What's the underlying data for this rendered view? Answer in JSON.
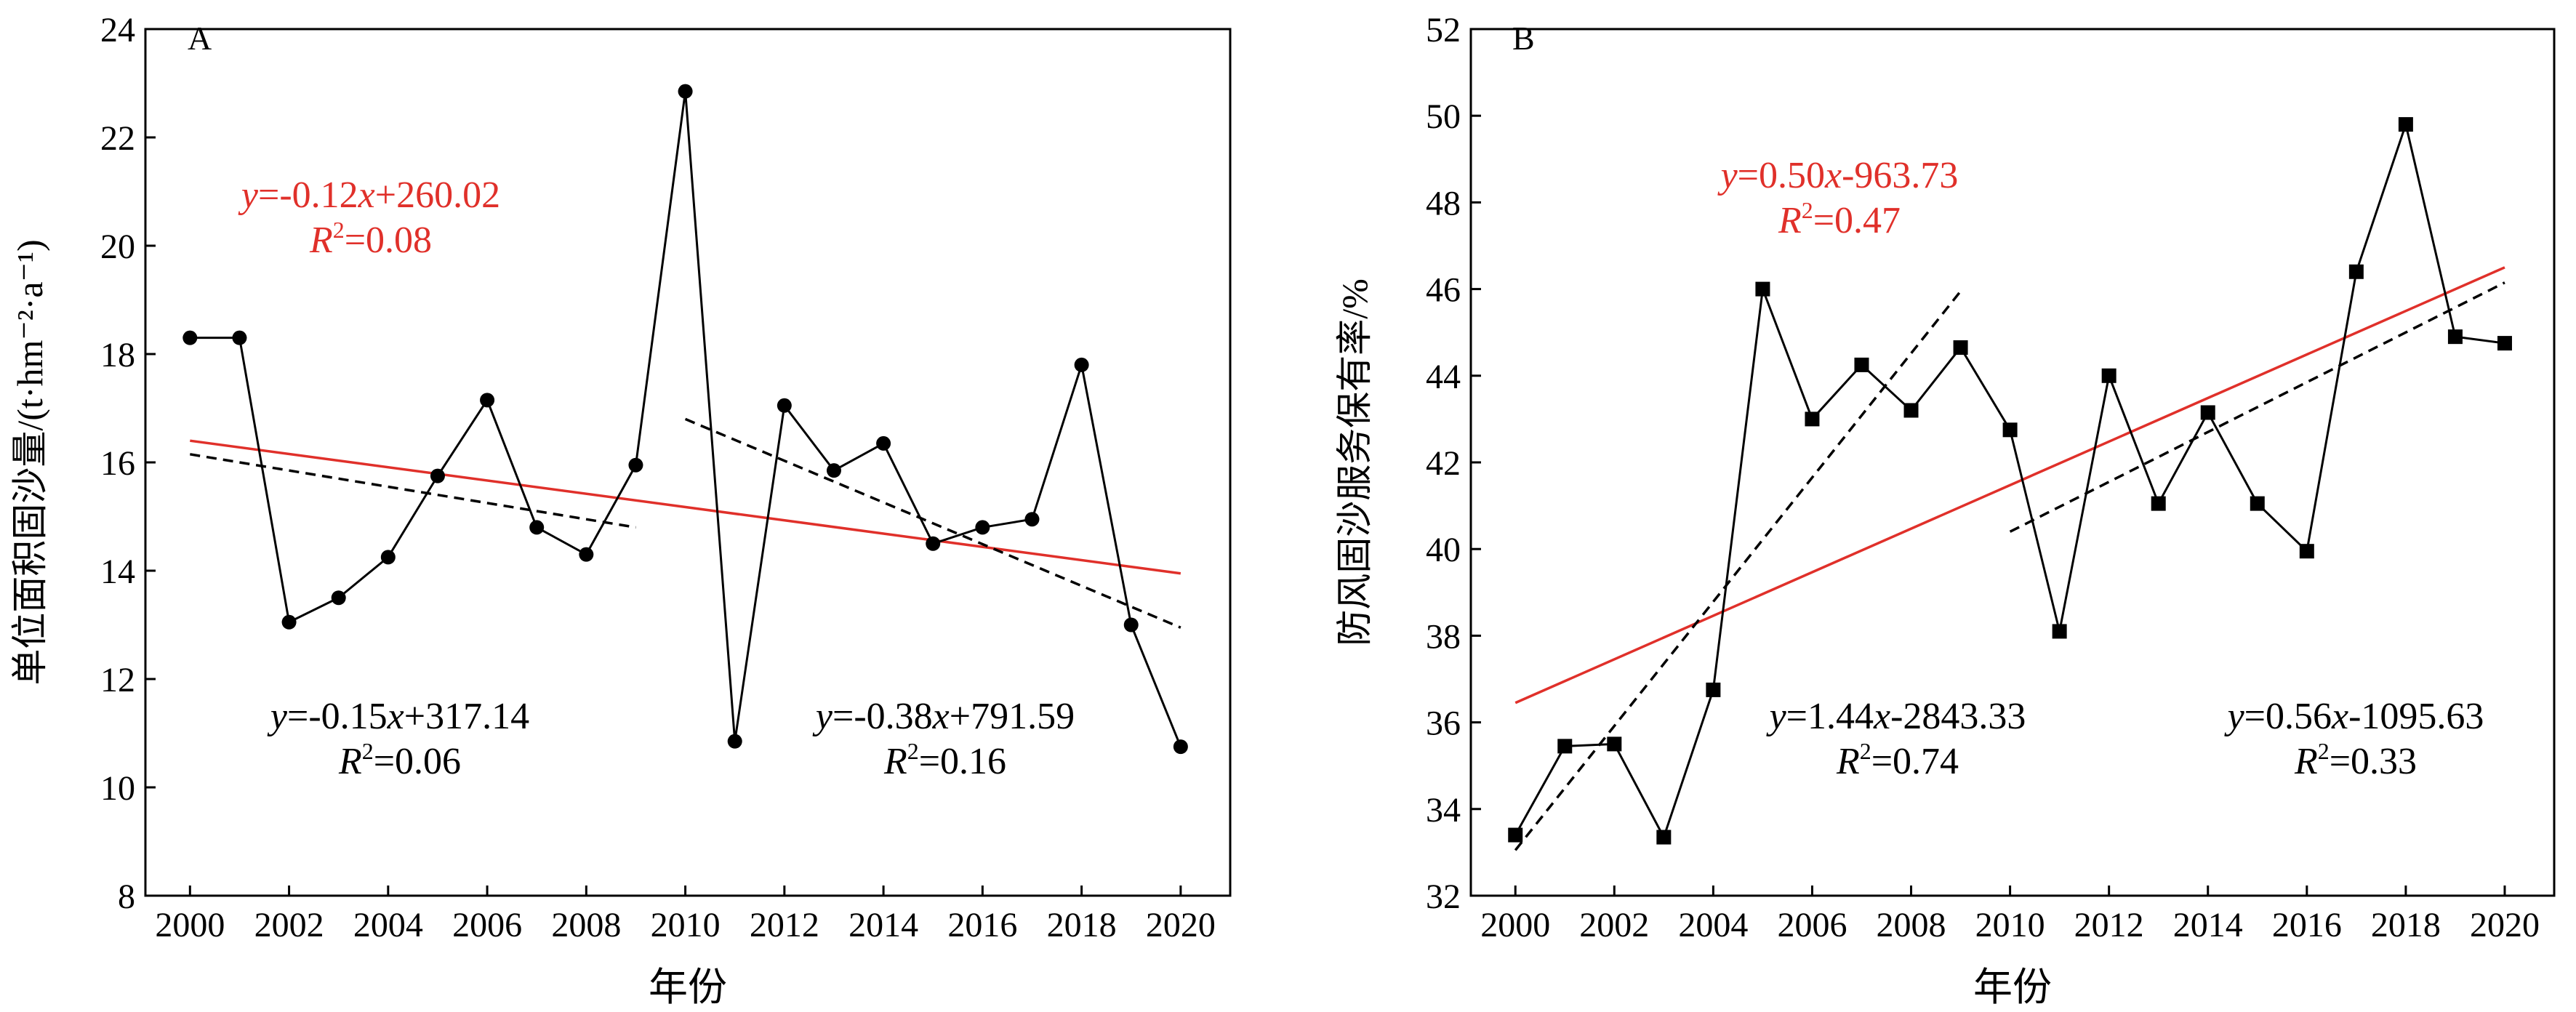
{
  "chart_data": [
    {
      "panel_label": "A",
      "type": "line",
      "xlabel": "年份",
      "ylabel": "单位面积固沙量/(t·hm⁻²·a⁻¹)",
      "xlim": [
        1999.1,
        2021.0
      ],
      "ylim": [
        8,
        24
      ],
      "xticks": [
        2000,
        2002,
        2004,
        2006,
        2008,
        2010,
        2012,
        2014,
        2016,
        2018,
        2020
      ],
      "yticks": [
        8,
        10,
        12,
        14,
        16,
        18,
        20,
        22,
        24
      ],
      "x": [
        2000,
        2001,
        2002,
        2003,
        2004,
        2005,
        2006,
        2007,
        2008,
        2009,
        2010,
        2011,
        2012,
        2013,
        2014,
        2015,
        2016,
        2017,
        2018,
        2019,
        2020
      ],
      "values": [
        18.3,
        18.3,
        13.05,
        13.5,
        14.25,
        15.75,
        17.15,
        14.8,
        14.3,
        15.95,
        22.85,
        10.85,
        17.05,
        15.85,
        16.35,
        14.5,
        14.8,
        14.95,
        17.8,
        13.0,
        10.75
      ],
      "marker": "circle",
      "trend_lines": [
        {
          "style": "solid",
          "color": "#e0302a",
          "x": [
            2000,
            2020
          ],
          "y": [
            16.4,
            13.95
          ]
        },
        {
          "style": "dashed",
          "color": "#000000",
          "x": [
            2000,
            2009
          ],
          "y": [
            16.15,
            14.8
          ]
        },
        {
          "style": "dashed",
          "color": "#000000",
          "x": [
            2010,
            2020
          ],
          "y": [
            16.8,
            12.95
          ]
        }
      ],
      "annotations": [
        {
          "color": "#e0302a",
          "eq_y": "y",
          "eq_mid": "=-0.12",
          "eq_x": "x",
          "eq_tail": "+260.02",
          "r_R": "R",
          "r_sup": "2",
          "r_val": "=0.08"
        },
        {
          "color": "#000000",
          "eq_y": "y",
          "eq_mid": "=-0.15",
          "eq_x": "x",
          "eq_tail": "+317.14",
          "r_R": "R",
          "r_sup": "2",
          "r_val": "=0.06"
        },
        {
          "color": "#000000",
          "eq_y": "y",
          "eq_mid": "=-0.38",
          "eq_x": "x",
          "eq_tail": "+791.59",
          "r_R": "R",
          "r_sup": "2",
          "r_val": "=0.16"
        }
      ]
    },
    {
      "panel_label": "B",
      "type": "line",
      "xlabel": "年份",
      "ylabel": "防风固沙服务保有率/%",
      "xlim": [
        1999.1,
        2021.0
      ],
      "ylim": [
        32,
        52
      ],
      "xticks": [
        2000,
        2002,
        2004,
        2006,
        2008,
        2010,
        2012,
        2014,
        2016,
        2018,
        2020
      ],
      "yticks": [
        32,
        34,
        36,
        38,
        40,
        42,
        44,
        46,
        48,
        50,
        52
      ],
      "x": [
        2000,
        2001,
        2002,
        2003,
        2004,
        2005,
        2006,
        2007,
        2008,
        2009,
        2010,
        2011,
        2012,
        2013,
        2014,
        2015,
        2016,
        2017,
        2018,
        2019,
        2020
      ],
      "values": [
        33.4,
        35.45,
        35.5,
        33.35,
        36.75,
        46.0,
        43.0,
        44.25,
        43.2,
        44.65,
        42.75,
        38.1,
        44.0,
        41.05,
        43.15,
        41.05,
        39.95,
        46.4,
        49.8,
        44.9,
        44.75
      ],
      "marker": "square",
      "trend_lines": [
        {
          "style": "solid",
          "color": "#e0302a",
          "x": [
            2000,
            2020
          ],
          "y": [
            36.45,
            46.5
          ]
        },
        {
          "style": "dashed",
          "color": "#000000",
          "x": [
            2000,
            2009
          ],
          "y": [
            33.05,
            45.95
          ]
        },
        {
          "style": "dashed",
          "color": "#000000",
          "x": [
            2010,
            2020
          ],
          "y": [
            40.4,
            46.15
          ]
        }
      ],
      "annotations": [
        {
          "color": "#e0302a",
          "eq_y": "y",
          "eq_mid": "=0.50",
          "eq_x": "x",
          "eq_tail": "-963.73",
          "r_R": "R",
          "r_sup": "2",
          "r_val": "=0.47"
        },
        {
          "color": "#000000",
          "eq_y": "y",
          "eq_mid": "=1.44",
          "eq_x": "x",
          "eq_tail": "-2843.33",
          "r_R": "R",
          "r_sup": "2",
          "r_val": "=0.74"
        },
        {
          "color": "#000000",
          "eq_y": "y",
          "eq_mid": "=0.56",
          "eq_x": "x",
          "eq_tail": "-1095.63",
          "r_R": "R",
          "r_sup": "2",
          "r_val": "=0.33"
        }
      ]
    }
  ]
}
